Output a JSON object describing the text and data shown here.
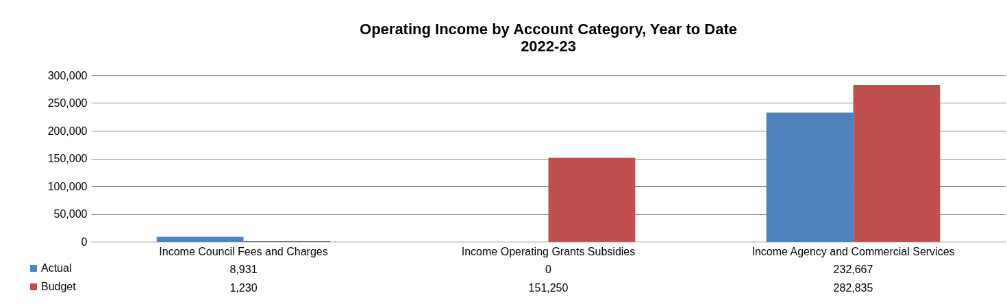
{
  "chart_data": {
    "type": "bar",
    "title": "Operating Income by Account Category, Year to Date",
    "subtitle": "2022-23",
    "categories": [
      "Income Council Fees and Charges",
      "Income Operating Grants Subsidies",
      "Income Agency and Commercial Services"
    ],
    "series": [
      {
        "name": "Actual",
        "color": "#4f81bd",
        "values": [
          8931,
          0,
          232667
        ],
        "value_labels": [
          "8,931",
          "0",
          "232,667"
        ]
      },
      {
        "name": "Budget",
        "color": "#c0504d",
        "values": [
          1230,
          151250,
          282835
        ],
        "value_labels": [
          "1,230",
          "151,250",
          "282,835"
        ]
      }
    ],
    "ylim": [
      0,
      300000
    ],
    "yticks": [
      0,
      {
        "value": 50000,
        "label": "50,000"
      },
      {
        "value": 100000,
        "label": "100,000"
      },
      {
        "value": 150000,
        "label": "150,000"
      },
      {
        "value": 200000,
        "label": "200,000"
      },
      {
        "value": 250000,
        "label": "250,000"
      },
      {
        "value": 300000,
        "label": "300,000"
      }
    ],
    "grid": "y",
    "legend": "bottom left"
  }
}
